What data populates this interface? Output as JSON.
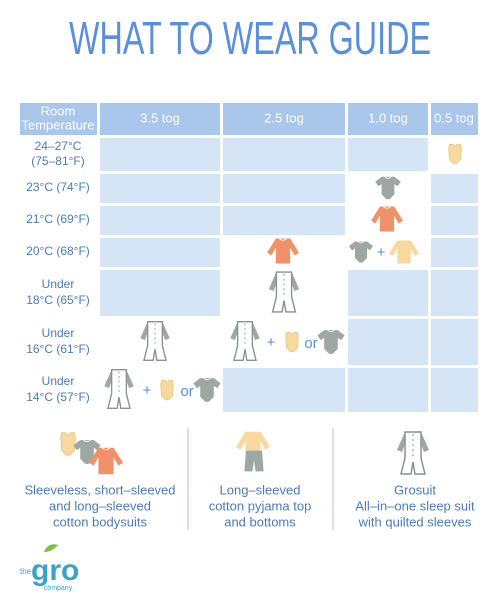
{
  "title": "WHAT TO WEAR GUIDE",
  "table": {
    "header": {
      "corner": [
        "Room",
        "Temperature"
      ],
      "togs": [
        "3.5 tog",
        "2.5 tog",
        "1.0 tog",
        "0.5 tog"
      ]
    },
    "rows": [
      {
        "label": [
          "24–27°C",
          "(75–81°F)"
        ]
      },
      {
        "label": [
          "23°C (74°F)"
        ]
      },
      {
        "label": [
          "21°C (69°F)"
        ]
      },
      {
        "label": [
          "20°C (68°F)"
        ],
        "connectors": [
          "+"
        ]
      },
      {
        "label": [
          "Under",
          "18°C (65°F)"
        ]
      },
      {
        "label": [
          "Under",
          "16°C (61°F)"
        ],
        "connectors": [
          "+",
          "or"
        ]
      },
      {
        "label": [
          "Under",
          "14°C (57°F)"
        ],
        "connectors": [
          "+",
          "or"
        ]
      }
    ]
  },
  "legend": [
    {
      "lines": [
        "Sleeveless, short–sleeved",
        "and long–sleeved",
        "cotton bodysuits"
      ]
    },
    {
      "lines": [
        "Long–sleeved",
        "cotton pyjama top",
        "and bottoms"
      ]
    },
    {
      "lines": [
        "Grosuit",
        "All–in–one sleep suit",
        "with quilted sleeves"
      ]
    }
  ],
  "logo": {
    "small": "the",
    "name": "gro",
    "tagline": "company"
  }
}
